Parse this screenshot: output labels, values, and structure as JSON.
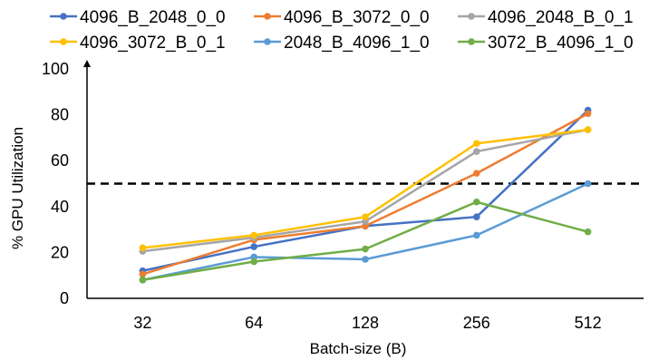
{
  "chart_data": {
    "type": "line",
    "title": "",
    "xlabel": "Batch-size (B)",
    "ylabel": "% GPU Utilization",
    "categories": [
      "32",
      "64",
      "128",
      "256",
      "512"
    ],
    "ylim": [
      0,
      100
    ],
    "yticks": [
      0,
      20,
      40,
      60,
      80,
      100
    ],
    "grid": false,
    "legend_position": "top",
    "reference_line": {
      "y": 50,
      "style": "dashed",
      "color": "#000000"
    },
    "series": [
      {
        "name": "4096_B_2048_0_0",
        "color": "#4472C4",
        "values": [
          12,
          22.5,
          31.5,
          35.5,
          82
        ]
      },
      {
        "name": "4096_B_3072_0_0",
        "color": "#ED7D31",
        "values": [
          10.5,
          25.5,
          31.5,
          54.5,
          80.5
        ]
      },
      {
        "name": "4096_2048_B_0_1",
        "color": "#A5A5A5",
        "values": [
          20.5,
          26.5,
          33.5,
          64,
          73.5
        ]
      },
      {
        "name": "4096_3072_B_0_1",
        "color": "#FFC000",
        "values": [
          22,
          27.5,
          35.5,
          67.5,
          73.5
        ]
      },
      {
        "name": "2048_B_4096_1_0",
        "color": "#5B9BD5",
        "values": [
          8,
          18,
          17,
          27.5,
          50
        ]
      },
      {
        "name": "3072_B_4096_1_0",
        "color": "#70AD47",
        "values": [
          8,
          16,
          21.5,
          42,
          29
        ]
      }
    ]
  }
}
